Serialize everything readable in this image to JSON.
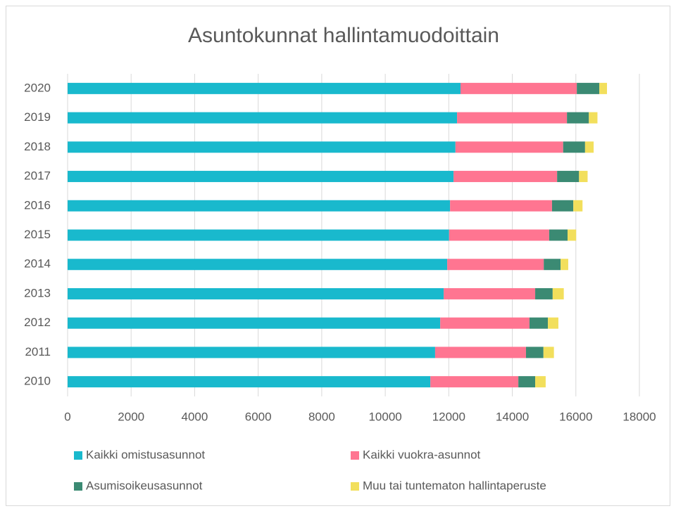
{
  "chart_data": {
    "type": "stacked-bar-horizontal",
    "title": "Asuntokunnat hallintamuodoittain",
    "categories": [
      "2010",
      "2011",
      "2012",
      "2013",
      "2014",
      "2015",
      "2016",
      "2017",
      "2018",
      "2019",
      "2020"
    ],
    "series": [
      {
        "name": "Kaikki omistusasunnot",
        "color": "#19b9cd",
        "values": [
          11420,
          11570,
          11730,
          11840,
          11950,
          12010,
          12040,
          12150,
          12210,
          12260,
          12370
        ]
      },
      {
        "name": "Kaikki vuokra-asunnot",
        "color": "#ff7591",
        "values": [
          2770,
          2860,
          2810,
          2880,
          3040,
          3150,
          3210,
          3260,
          3390,
          3460,
          3660
        ]
      },
      {
        "name": "Asumisoikeusasunnot",
        "color": "#3b8a73",
        "values": [
          530,
          550,
          580,
          550,
          530,
          580,
          670,
          690,
          690,
          690,
          710
        ]
      },
      {
        "name": "Muu tai tuntematon hallintaperuste",
        "color": "#f2df5c",
        "values": [
          330,
          330,
          330,
          350,
          240,
          270,
          290,
          270,
          270,
          270,
          240
        ]
      }
    ],
    "xlim": [
      0,
      18000
    ],
    "xticks": [
      0,
      2000,
      4000,
      6000,
      8000,
      10000,
      12000,
      14000,
      16000,
      18000
    ],
    "grid": true,
    "legend": "bottom"
  }
}
